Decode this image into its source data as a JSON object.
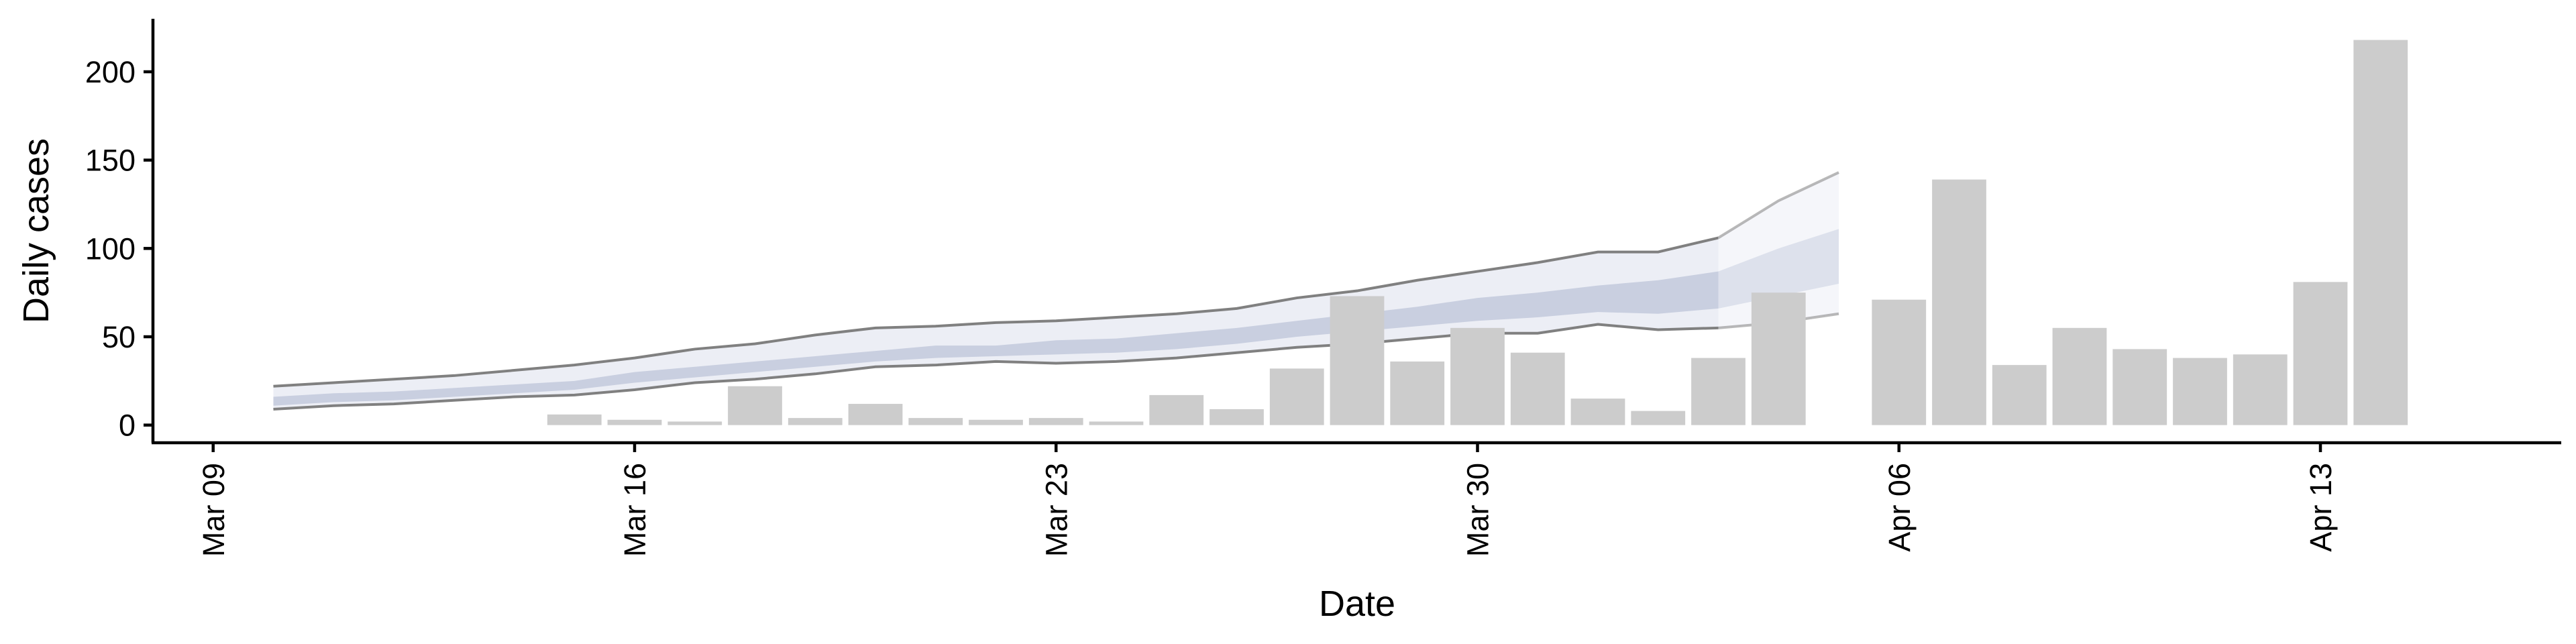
{
  "chart_data": {
    "type": "bar",
    "xlabel": "Date",
    "ylabel": "Daily cases",
    "grid": false,
    "legend": "none",
    "x_axis": {
      "type": "date",
      "range": [
        "2020-03-08",
        "2020-04-17"
      ],
      "ticks": [
        {
          "date": "2020-03-09",
          "label": "Mar 09"
        },
        {
          "date": "2020-03-16",
          "label": "Mar 16"
        },
        {
          "date": "2020-03-23",
          "label": "Mar 23"
        },
        {
          "date": "2020-03-30",
          "label": "Mar 30"
        },
        {
          "date": "2020-04-06",
          "label": "Apr 06"
        },
        {
          "date": "2020-04-13",
          "label": "Apr 13"
        }
      ]
    },
    "y_axis": {
      "range": [
        -10,
        230
      ],
      "ticks": [
        0,
        50,
        100,
        150,
        200
      ]
    },
    "bars": {
      "color": "#cccccc",
      "x": [
        "2020-03-15",
        "2020-03-16",
        "2020-03-17",
        "2020-03-18",
        "2020-03-19",
        "2020-03-20",
        "2020-03-21",
        "2020-03-22",
        "2020-03-23",
        "2020-03-24",
        "2020-03-25",
        "2020-03-26",
        "2020-03-27",
        "2020-03-28",
        "2020-03-29",
        "2020-03-30",
        "2020-03-31",
        "2020-04-01",
        "2020-04-02",
        "2020-04-03",
        "2020-04-04",
        "2020-04-06",
        "2020-04-07",
        "2020-04-08",
        "2020-04-09",
        "2020-04-10",
        "2020-04-11",
        "2020-04-12",
        "2020-04-13",
        "2020-04-14"
      ],
      "values": [
        6,
        3,
        2,
        22,
        4,
        12,
        4,
        3,
        4,
        2,
        17,
        9,
        32,
        73,
        36,
        55,
        41,
        15,
        8,
        38,
        75,
        71,
        139,
        34,
        55,
        43,
        38,
        40,
        81,
        218
      ]
    },
    "forecast_band": {
      "line_color": "#808080",
      "outer_fill": "#eceef5",
      "inner_fill": "#c9cfe0",
      "x": [
        "2020-03-10",
        "2020-03-11",
        "2020-03-12",
        "2020-03-13",
        "2020-03-14",
        "2020-03-15",
        "2020-03-16",
        "2020-03-17",
        "2020-03-18",
        "2020-03-19",
        "2020-03-20",
        "2020-03-21",
        "2020-03-22",
        "2020-03-23",
        "2020-03-24",
        "2020-03-25",
        "2020-03-26",
        "2020-03-27",
        "2020-03-28",
        "2020-03-29",
        "2020-03-30",
        "2020-03-31",
        "2020-04-01",
        "2020-04-02",
        "2020-04-03",
        "2020-04-04",
        "2020-04-05"
      ],
      "upper": [
        22,
        24,
        26,
        28,
        31,
        34,
        38,
        43,
        46,
        51,
        55,
        56,
        58,
        59,
        61,
        63,
        66,
        72,
        76,
        82,
        87,
        92,
        98,
        98,
        106,
        127,
        143
      ],
      "lower": [
        9,
        11,
        12,
        14,
        16,
        17,
        20,
        24,
        26,
        29,
        33,
        34,
        36,
        35,
        36,
        38,
        41,
        44,
        46,
        49,
        52,
        52,
        57,
        54,
        55,
        58,
        63
      ],
      "inner_upper": [
        16,
        18,
        19,
        21,
        23,
        25,
        30,
        33,
        36,
        39,
        42,
        45,
        45,
        48,
        49,
        52,
        55,
        59,
        63,
        67,
        72,
        75,
        79,
        82,
        87,
        100,
        111
      ],
      "inner_lower": [
        11,
        13,
        14,
        16,
        18,
        20,
        24,
        27,
        30,
        33,
        36,
        38,
        39,
        40,
        41,
        43,
        46,
        50,
        53,
        56,
        59,
        61,
        64,
        63,
        66,
        73,
        80
      ],
      "faded_from": "2020-04-03"
    }
  }
}
